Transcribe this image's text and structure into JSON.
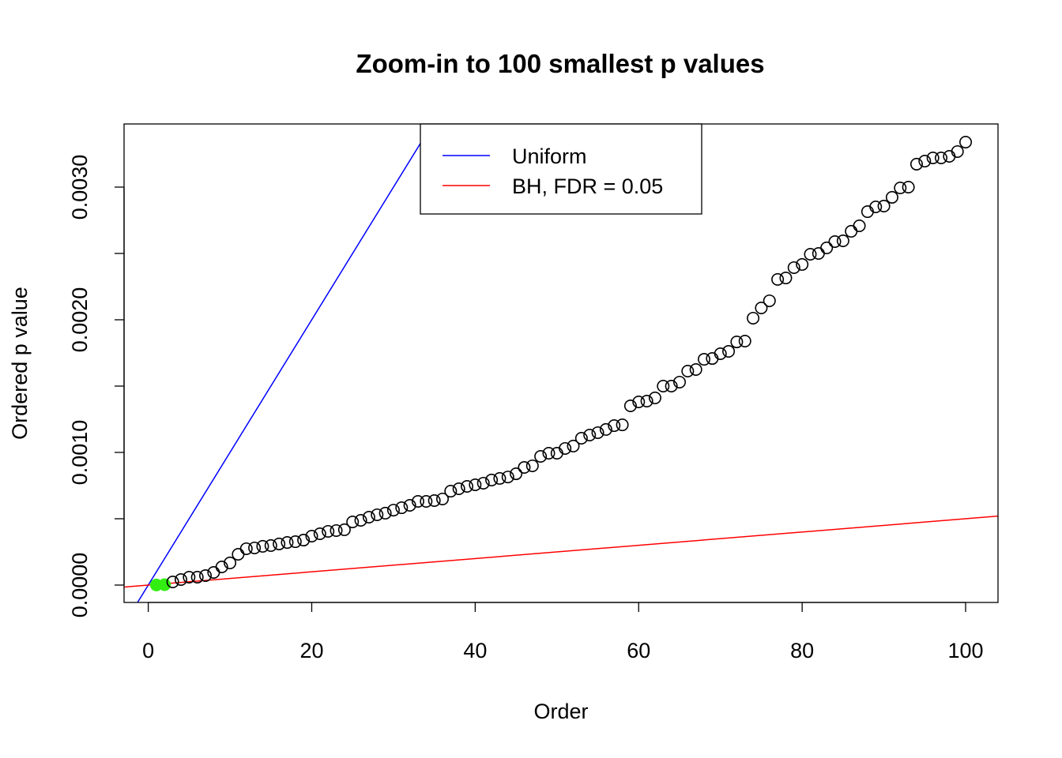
{
  "chart_data": {
    "type": "scatter",
    "title": "Zoom-in to 100 smallest p values",
    "xlabel": "Order",
    "ylabel": "Ordered p value",
    "xlim": [
      -2.96,
      103.96
    ],
    "ylim": [
      -0.000131,
      0.003476
    ],
    "xticks": [
      0,
      20,
      40,
      60,
      80,
      100
    ],
    "xtick_labels": [
      "0",
      "20",
      "40",
      "60",
      "80",
      "100"
    ],
    "yticks": [
      0,
      0.0005,
      0.001,
      0.0015,
      0.002,
      0.0025,
      0.003
    ],
    "ytick_labels": [
      "0.0000",
      "",
      "0.0010",
      "",
      "0.0020",
      "",
      "0.0030"
    ],
    "grid": false,
    "legend": {
      "position": "top-center",
      "entries": [
        {
          "label": "Uniform",
          "color": "#0000ff"
        },
        {
          "label": "BH, FDR = 0.05",
          "color": "#ff0000"
        }
      ]
    },
    "lines": [
      {
        "name": "Uniform",
        "slope": 0.0001,
        "intercept": 0,
        "color": "#0000ff"
      },
      {
        "name": "BH, FDR = 0.05",
        "slope": 5e-06,
        "intercept": 0,
        "color": "#ff0000"
      }
    ],
    "significant_color": "#33ee11",
    "significant_count": 2,
    "x": [
      1,
      2,
      3,
      4,
      5,
      6,
      7,
      8,
      9,
      10,
      11,
      12,
      13,
      14,
      15,
      16,
      17,
      18,
      19,
      20,
      21,
      22,
      23,
      24,
      25,
      26,
      27,
      28,
      29,
      30,
      31,
      32,
      33,
      34,
      35,
      36,
      37,
      38,
      39,
      40,
      41,
      42,
      43,
      44,
      45,
      46,
      47,
      48,
      49,
      50,
      51,
      52,
      53,
      54,
      55,
      56,
      57,
      58,
      59,
      60,
      61,
      62,
      63,
      64,
      65,
      66,
      67,
      68,
      69,
      70,
      71,
      72,
      73,
      74,
      75,
      76,
      77,
      78,
      79,
      80,
      81,
      82,
      83,
      84,
      85,
      86,
      87,
      88,
      89,
      90,
      91,
      92,
      93,
      94,
      95,
      96,
      97,
      98,
      99,
      100
    ],
    "y": [
      1e-06,
      3e-06,
      2.38e-05,
      4.17e-05,
      5.95e-05,
      5.95e-05,
      7.14e-05,
      9.52e-05,
      0.000137,
      0.000167,
      0.000232,
      0.000274,
      0.00028,
      0.000292,
      0.000298,
      0.00031,
      0.000321,
      0.000327,
      0.000339,
      0.000369,
      0.000387,
      0.000405,
      0.000411,
      0.000417,
      0.000476,
      0.000488,
      0.000512,
      0.00053,
      0.000542,
      0.000565,
      0.000583,
      0.000601,
      0.000631,
      0.000631,
      0.000637,
      0.000649,
      0.000708,
      0.000726,
      0.000744,
      0.000756,
      0.000768,
      0.000792,
      0.000804,
      0.000815,
      0.000839,
      0.000887,
      0.000899,
      0.00097,
      0.000994,
      0.000994,
      0.00103,
      0.001048,
      0.001107,
      0.001131,
      0.001149,
      0.001173,
      0.001202,
      0.001208,
      0.001351,
      0.001381,
      0.001387,
      0.001411,
      0.0015,
      0.0015,
      0.00153,
      0.001613,
      0.001625,
      0.001702,
      0.001708,
      0.001744,
      0.001762,
      0.001833,
      0.001839,
      0.002012,
      0.002089,
      0.002143,
      0.002304,
      0.002315,
      0.002393,
      0.002417,
      0.002494,
      0.0025,
      0.002542,
      0.002589,
      0.002595,
      0.002667,
      0.002708,
      0.002815,
      0.002851,
      0.002857,
      0.002923,
      0.002994,
      0.003,
      0.003173,
      0.003196,
      0.00322,
      0.00322,
      0.003232,
      0.003268,
      0.003339
    ]
  }
}
